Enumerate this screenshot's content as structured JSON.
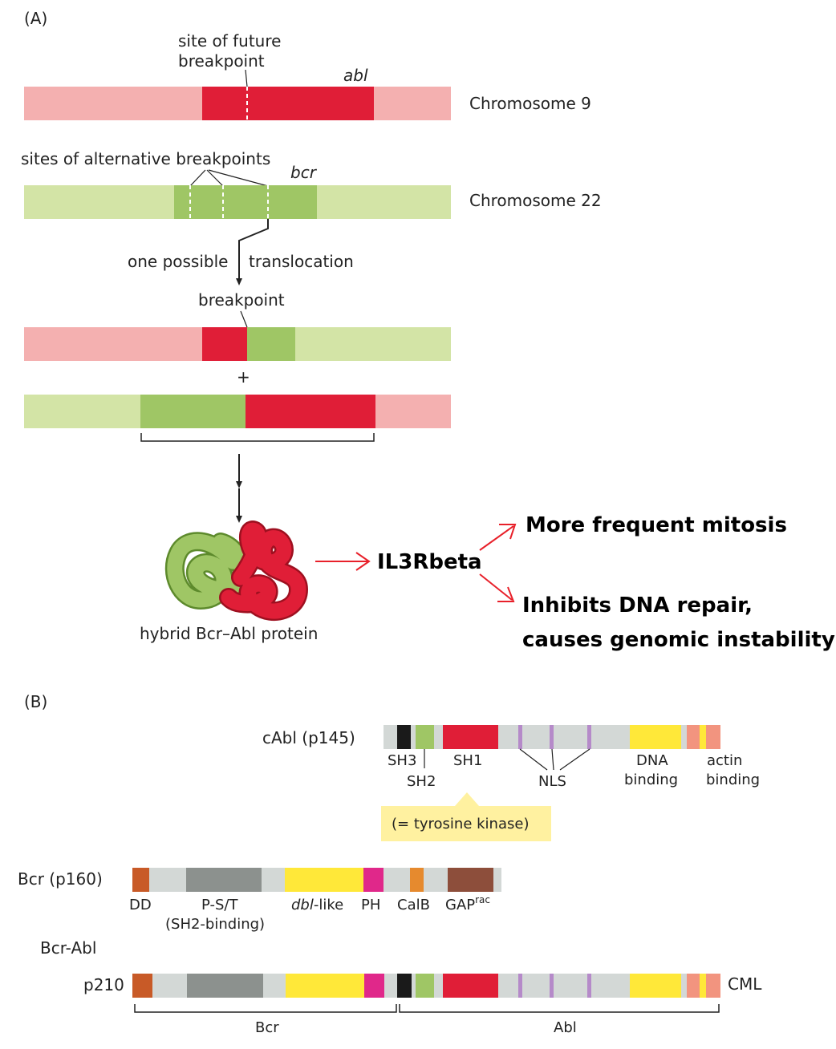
{
  "panel_a": {
    "label": "(A)",
    "future_breakpoint_label_1": "site of future",
    "future_breakpoint_label_2": "breakpoint",
    "abl_label": "abl",
    "chrom9_label": "Chromosome 9",
    "alt_breakpoints_label": "sites of alternative breakpoints",
    "bcr_label": "bcr",
    "chrom22_label": "Chromosome 22",
    "one_possible_label": "one possible",
    "translocation_label": "translocation",
    "breakpoint_label": "breakpoint",
    "plus_label": "+",
    "protein_label": "hybrid Bcr–Abl protein",
    "target_label": "IL3Rbeta",
    "effect_1": "More frequent mitosis",
    "effect_2_line1": "Inhibits DNA repair,",
    "effect_2_line2": "causes genomic instability"
  },
  "panel_b": {
    "label": "(B)",
    "cabl_label": "cAbl (p145)",
    "sh3_label": "SH3",
    "sh2_label": "SH2",
    "sh1_label": "SH1",
    "nls_label": "NLS",
    "dna_binding_1": "DNA",
    "dna_binding_2": "binding",
    "actin_binding_1": "actin",
    "actin_binding_2": "binding",
    "tyrosine_kinase_label": "(= tyrosine kinase)",
    "bcr_label": "Bcr (p160)",
    "dd_label": "DD",
    "pst_label_1": "P-S/T",
    "pst_label_2": "(SH2-binding)",
    "dbl_label_italic": "dbl",
    "dbl_label_rest": "-like",
    "ph_label": "PH",
    "calb_label": "CalB",
    "gap_label": "GAP",
    "gap_sup": "rac",
    "bcrabl_label": "Bcr-Abl",
    "p210_label": "p210",
    "cml_label": "CML",
    "bcr_bracket_label": "Bcr",
    "abl_bracket_label": "Abl"
  },
  "colors": {
    "light_red": "#f4b0b0",
    "red": "#e01e37",
    "light_green": "#d3e4a6",
    "green": "#9fc665",
    "light_gray": "#d3d8d6",
    "dark_gray": "#8c918e",
    "black": "#1a1a1a",
    "yellow": "#ffe839",
    "salmon": "#f2947f",
    "purple": "#b58ac9",
    "brown_orange": "#c85a27",
    "magenta": "#e0288a",
    "orange": "#e68a2e",
    "brown": "#8d4e3b",
    "callout": "#fff1a0",
    "arrow_red": "#e8202a"
  }
}
